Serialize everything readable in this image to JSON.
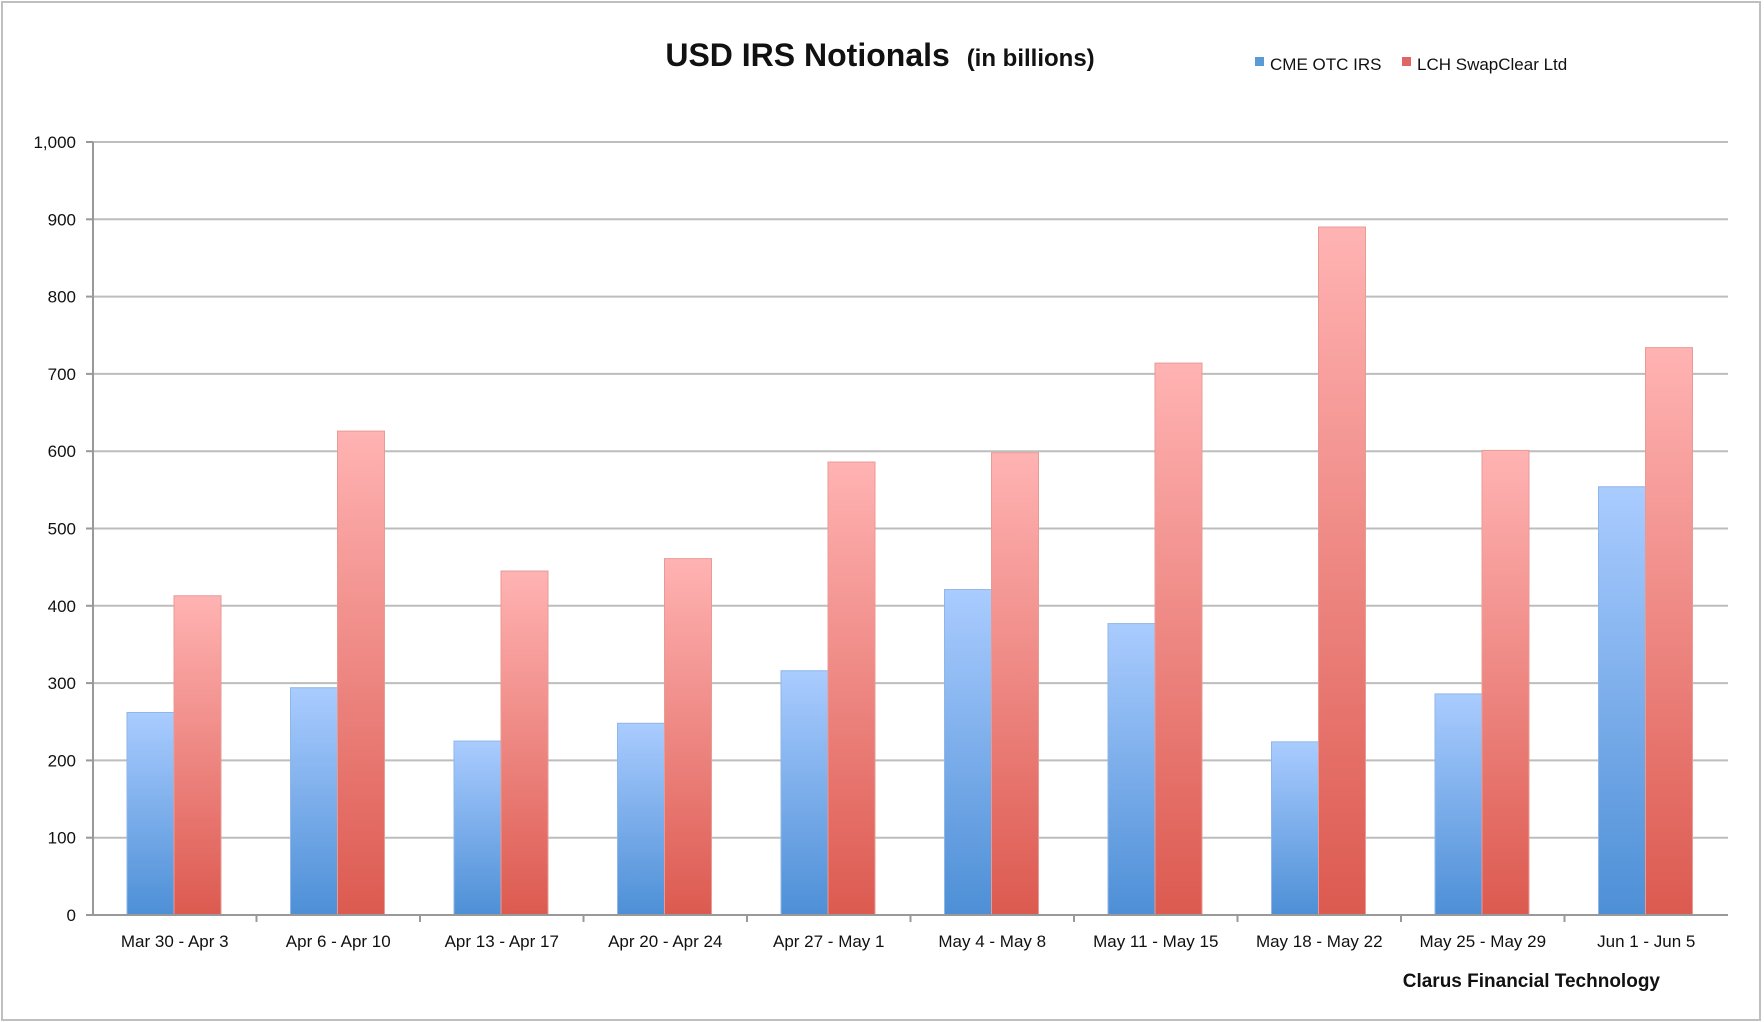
{
  "chart_data": {
    "type": "bar",
    "title": "USD IRS Notionals",
    "subtitle": "(in billions)",
    "categories": [
      "Mar 30 - Apr 3",
      "Apr 6 - Apr 10",
      "Apr 13 - Apr 17",
      "Apr 20 - Apr 24",
      "Apr 27 - May 1",
      "May 4 - May 8",
      "May 11 - May 15",
      "May 18 - May 22",
      "May 25 - May 29",
      "Jun 1 - Jun 5"
    ],
    "series": [
      {
        "name": "CME OTC IRS",
        "color": "#5b9bd5",
        "values": [
          262,
          294,
          225,
          248,
          316,
          421,
          377,
          224,
          286,
          554
        ]
      },
      {
        "name": "LCH SwapClear Ltd",
        "color": "#e06666",
        "values": [
          413,
          626,
          445,
          461,
          586,
          598,
          714,
          890,
          601,
          734
        ]
      }
    ],
    "ylim": [
      0,
      1000
    ],
    "yticks": [
      "0",
      "100",
      "200",
      "300",
      "400",
      "500",
      "600",
      "700",
      "800",
      "900",
      "1,000"
    ],
    "grid": true,
    "legend_position": "top-right",
    "source": "Clarus Financial Technology"
  }
}
